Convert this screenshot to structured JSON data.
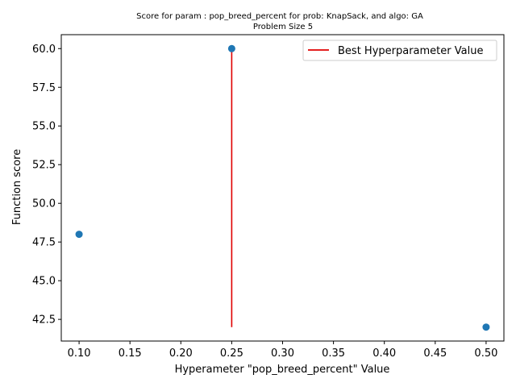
{
  "chart_data": {
    "type": "scatter",
    "title_line1": "Score for param : pop_breed_percent for prob: KnapSack, and algo: GA",
    "title_line2": "Problem Size 5",
    "xlabel": "Hyperameter \"pop_breed_percent\" Value",
    "ylabel": "Function score",
    "xlim": [
      0.0825,
      0.5175
    ],
    "ylim": [
      41.1,
      60.9
    ],
    "x_ticks": [
      0.1,
      0.15,
      0.2,
      0.25,
      0.3,
      0.35,
      0.4,
      0.45,
      0.5
    ],
    "x_tick_labels": [
      "0.10",
      "0.15",
      "0.20",
      "0.25",
      "0.30",
      "0.35",
      "0.40",
      "0.45",
      "0.50"
    ],
    "y_ticks": [
      42.5,
      45.0,
      47.5,
      50.0,
      52.5,
      55.0,
      57.5,
      60.0
    ],
    "y_tick_labels": [
      "42.5",
      "45.0",
      "47.5",
      "50.0",
      "52.5",
      "55.0",
      "57.5",
      "60.0"
    ],
    "points": [
      {
        "x": 0.1,
        "y": 48.0
      },
      {
        "x": 0.25,
        "y": 60.0
      },
      {
        "x": 0.5,
        "y": 42.0
      }
    ],
    "best_line": {
      "x": 0.25,
      "y_min": 42.0,
      "y_max": 60.0,
      "label": "Best Hyperparameter Value",
      "color": "#e00000"
    },
    "point_color": "#1f77b4",
    "legend_position": "upper right",
    "grid": false
  }
}
